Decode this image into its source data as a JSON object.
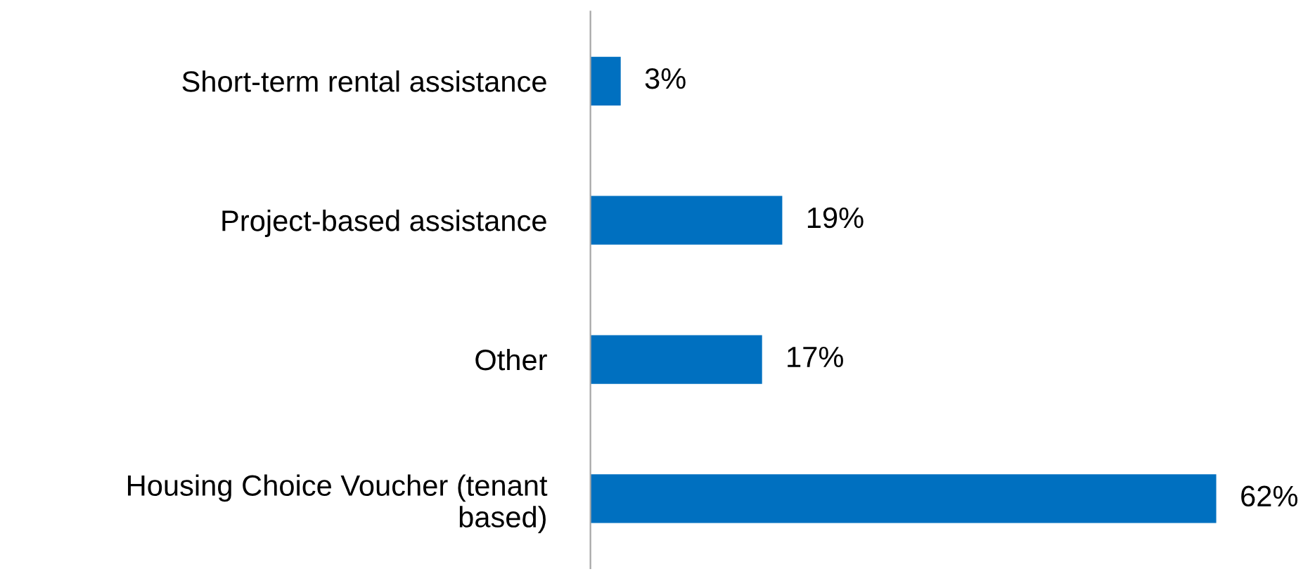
{
  "chart_data": {
    "type": "bar",
    "orientation": "horizontal",
    "categories": [
      "Short-term rental assistance",
      "Project-based assistance",
      "Other",
      "Housing Choice Voucher (tenant based)"
    ],
    "values": [
      3,
      19,
      17,
      62
    ],
    "color": "#0070c0",
    "value_labels": [
      "3%",
      "19%",
      "17%",
      "62%"
    ],
    "grid": false,
    "legend": false
  }
}
